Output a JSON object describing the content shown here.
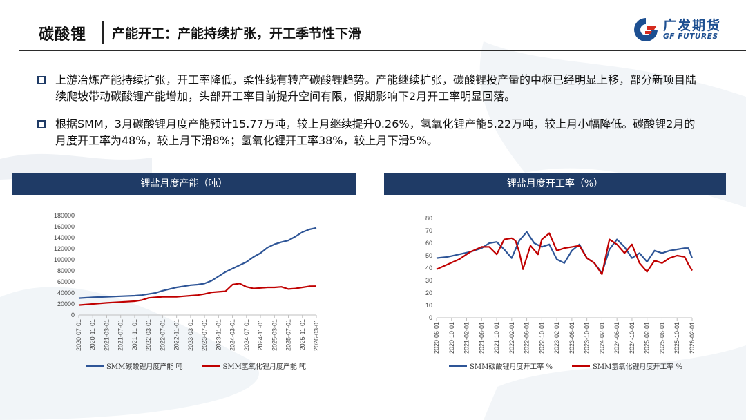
{
  "header": {
    "topic": "碳酸锂",
    "title": "产能开工：产能持续扩张，开工季节性下滑",
    "logo_cn": "广发期货",
    "logo_en": "GF FUTURES"
  },
  "bullets": [
    "上游冶炼产能持续扩张，开工率降低，柔性线有转产碳酸锂趋势。产能继续扩张，碳酸锂投产量的中枢已经明显上移，部分新项目陆续爬坡带动碳酸锂产能增加，头部开工率目前提升空间有限，假期影响下2月开工率明显回落。",
    "根据SMM，3月碳酸锂月度产能预计15.77万吨，较上月继续提升0.26%，氢氧化锂产能5.22万吨，较上月小幅降低。碳酸锂2月的月度开工率为48%，较上月下滑8%；氢氧化锂开工率38%，较上月下滑5%。"
  ],
  "colors": {
    "navy": "#1f3b66",
    "series_blue": "#2e5597",
    "series_red": "#c00000",
    "logo_red": "#d52b1e",
    "logo_blue": "#1d4f91"
  },
  "chart_data": [
    {
      "type": "line",
      "title": "锂盐月度产能（吨）",
      "ylim": [
        0,
        180000
      ],
      "yticks": [
        0,
        20000,
        40000,
        60000,
        80000,
        100000,
        120000,
        140000,
        160000,
        180000
      ],
      "x_range": [
        "2020-07",
        "2026-03"
      ],
      "xticks": [
        "2020-07-01",
        "2020-11-01",
        "2021-03-01",
        "2021-07-01",
        "2021-11-01",
        "2022-03-01",
        "2022-07-01",
        "2022-11-01",
        "2023-03-01",
        "2023-07-01",
        "2023-11-01",
        "2024-03-01",
        "2024-07-01",
        "2024-11-01",
        "2025-03-01",
        "2025-07-01",
        "2025-11-01",
        "2026-03-01"
      ],
      "series": [
        {
          "name": "SMM碳酸锂月度产能 吨",
          "color": "#2e5597",
          "points": [
            [
              "2020-07",
              30500
            ],
            [
              "2020-11",
              32000
            ],
            [
              "2021-03",
              33000
            ],
            [
              "2021-07",
              34000
            ],
            [
              "2021-11",
              35000
            ],
            [
              "2022-01",
              36000
            ],
            [
              "2022-03",
              38000
            ],
            [
              "2022-05",
              40000
            ],
            [
              "2022-07",
              44000
            ],
            [
              "2022-09",
              47000
            ],
            [
              "2022-11",
              50000
            ],
            [
              "2023-01",
              52000
            ],
            [
              "2023-03",
              54000
            ],
            [
              "2023-05",
              55000
            ],
            [
              "2023-07",
              57000
            ],
            [
              "2023-09",
              62000
            ],
            [
              "2023-11",
              70000
            ],
            [
              "2024-01",
              78000
            ],
            [
              "2024-03",
              84000
            ],
            [
              "2024-05",
              90000
            ],
            [
              "2024-07",
              96000
            ],
            [
              "2024-09",
              105000
            ],
            [
              "2024-11",
              112000
            ],
            [
              "2025-01",
              122000
            ],
            [
              "2025-03",
              128000
            ],
            [
              "2025-05",
              132000
            ],
            [
              "2025-07",
              135000
            ],
            [
              "2025-09",
              142000
            ],
            [
              "2025-11",
              150000
            ],
            [
              "2026-01",
              155000
            ],
            [
              "2026-03",
              157700
            ]
          ]
        },
        {
          "name": "SMM氢氧化锂月度产能 吨",
          "color": "#c00000",
          "points": [
            [
              "2020-07",
              18000
            ],
            [
              "2020-11",
              20000
            ],
            [
              "2021-03",
              22000
            ],
            [
              "2021-07",
              23500
            ],
            [
              "2021-11",
              25000
            ],
            [
              "2022-01",
              27000
            ],
            [
              "2022-03",
              31000
            ],
            [
              "2022-05",
              32000
            ],
            [
              "2022-07",
              33000
            ],
            [
              "2022-09",
              33000
            ],
            [
              "2022-11",
              33000
            ],
            [
              "2023-01",
              34000
            ],
            [
              "2023-03",
              35000
            ],
            [
              "2023-05",
              36000
            ],
            [
              "2023-07",
              38000
            ],
            [
              "2023-09",
              41000
            ],
            [
              "2023-11",
              42000
            ],
            [
              "2024-01",
              43000
            ],
            [
              "2024-03",
              55000
            ],
            [
              "2024-05",
              57000
            ],
            [
              "2024-07",
              51000
            ],
            [
              "2024-09",
              48000
            ],
            [
              "2024-11",
              49000
            ],
            [
              "2025-01",
              50000
            ],
            [
              "2025-03",
              50000
            ],
            [
              "2025-05",
              51000
            ],
            [
              "2025-07",
              47000
            ],
            [
              "2025-09",
              48000
            ],
            [
              "2025-11",
              50000
            ],
            [
              "2026-01",
              52000
            ],
            [
              "2026-03",
              52200
            ]
          ]
        }
      ]
    },
    {
      "type": "line",
      "title": "锂盐月度开工率（%）",
      "ylim": [
        0,
        80
      ],
      "yticks": [
        0,
        10,
        20,
        30,
        40,
        50,
        60,
        70,
        80
      ],
      "x_range": [
        "2020-06",
        "2026-02"
      ],
      "xticks": [
        "2020-06-01",
        "2020-10-01",
        "2021-02-01",
        "2021-06-01",
        "2021-10-01",
        "2022-02-01",
        "2022-06-01",
        "2022-10-01",
        "2023-02-01",
        "2023-06-01",
        "2023-10-01",
        "2024-02-01",
        "2024-06-01",
        "2024-10-01",
        "2025-02-01",
        "2025-06-01",
        "2025-10-01",
        "2026-02-01"
      ],
      "series": [
        {
          "name": "SMM碳酸锂月度开工率 %",
          "color": "#2e5597",
          "points": [
            [
              "2020-06",
              48
            ],
            [
              "2020-09",
              49
            ],
            [
              "2020-12",
              51
            ],
            [
              "2021-03",
              53
            ],
            [
              "2021-06",
              56
            ],
            [
              "2021-08",
              60
            ],
            [
              "2021-10",
              61
            ],
            [
              "2021-12",
              55
            ],
            [
              "2022-02",
              48
            ],
            [
              "2022-04",
              62
            ],
            [
              "2022-06",
              69
            ],
            [
              "2022-08",
              60
            ],
            [
              "2022-10",
              57
            ],
            [
              "2022-12",
              59
            ],
            [
              "2023-02",
              47
            ],
            [
              "2023-04",
              44
            ],
            [
              "2023-06",
              54
            ],
            [
              "2023-08",
              59
            ],
            [
              "2023-10",
              48
            ],
            [
              "2023-12",
              44
            ],
            [
              "2024-02",
              36
            ],
            [
              "2024-04",
              55
            ],
            [
              "2024-06",
              63
            ],
            [
              "2024-08",
              57
            ],
            [
              "2024-10",
              48
            ],
            [
              "2024-12",
              52
            ],
            [
              "2025-02",
              45
            ],
            [
              "2025-04",
              54
            ],
            [
              "2025-06",
              52
            ],
            [
              "2025-08",
              54
            ],
            [
              "2025-10",
              55
            ],
            [
              "2025-12",
              56
            ],
            [
              "2026-01",
              56
            ],
            [
              "2026-02",
              48
            ]
          ]
        },
        {
          "name": "SMM氢氧化锂月度开工率 %",
          "color": "#c00000",
          "points": [
            [
              "2020-06",
              39
            ],
            [
              "2020-09",
              43
            ],
            [
              "2020-12",
              47
            ],
            [
              "2021-03",
              53
            ],
            [
              "2021-06",
              57
            ],
            [
              "2021-08",
              57
            ],
            [
              "2021-10",
              51
            ],
            [
              "2021-12",
              63
            ],
            [
              "2022-02",
              64
            ],
            [
              "2022-03",
              62
            ],
            [
              "2022-04",
              53
            ],
            [
              "2022-05",
              39
            ],
            [
              "2022-07",
              58
            ],
            [
              "2022-09",
              51
            ],
            [
              "2022-10",
              63
            ],
            [
              "2022-12",
              68
            ],
            [
              "2023-02",
              54
            ],
            [
              "2023-04",
              56
            ],
            [
              "2023-06",
              57
            ],
            [
              "2023-08",
              58
            ],
            [
              "2023-10",
              48
            ],
            [
              "2023-12",
              44
            ],
            [
              "2024-02",
              35
            ],
            [
              "2024-04",
              63
            ],
            [
              "2024-06",
              59
            ],
            [
              "2024-08",
              52
            ],
            [
              "2024-10",
              59
            ],
            [
              "2024-12",
              44
            ],
            [
              "2025-02",
              37
            ],
            [
              "2025-04",
              46
            ],
            [
              "2025-06",
              44
            ],
            [
              "2025-08",
              48
            ],
            [
              "2025-10",
              50
            ],
            [
              "2025-12",
              49
            ],
            [
              "2026-01",
              43
            ],
            [
              "2026-02",
              38
            ]
          ]
        }
      ]
    }
  ]
}
